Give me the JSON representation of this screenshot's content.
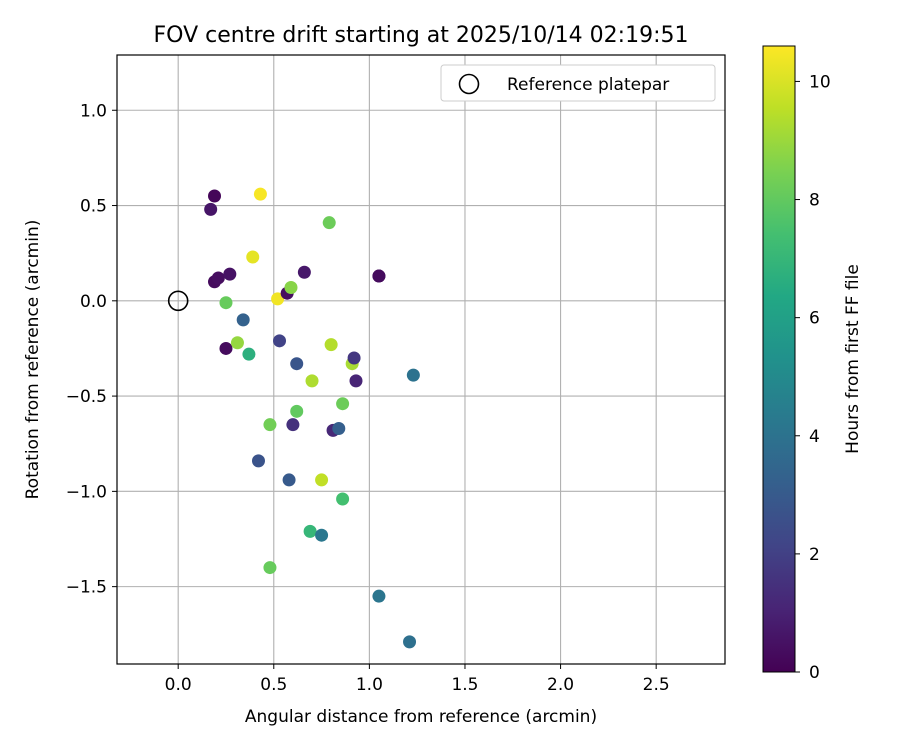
{
  "chart_data": {
    "type": "scatter",
    "title": "FOV centre drift starting at 2025/10/14 02:19:51",
    "xlabel": "Angular distance from reference (arcmin)",
    "ylabel": "Rotation from reference (arcmin)",
    "xlim": [
      -0.32,
      2.86
    ],
    "ylim": [
      -1.906,
      1.29
    ],
    "xticks": [
      0.0,
      0.5,
      1.0,
      1.5,
      2.0,
      2.5
    ],
    "xtick_labels": [
      "0.0",
      "0.5",
      "1.0",
      "1.5",
      "2.0",
      "2.5"
    ],
    "yticks": [
      1.0,
      0.5,
      0.0,
      -0.5,
      -1.0,
      -1.5
    ],
    "ytick_labels": [
      "1.0",
      "0.5",
      "0.0",
      "−0.5",
      "−1.0",
      "−1.5"
    ],
    "grid": true,
    "legend": {
      "position": "top-right",
      "entries": [
        {
          "label": "Reference platepar",
          "marker": "open-circle"
        }
      ]
    },
    "reference_point": {
      "x": 0.0,
      "y": 0.0
    },
    "colorbar": {
      "label": "Hours from first FF file",
      "colormap": "viridis",
      "range": [
        0,
        10.6
      ],
      "ticks": [
        0,
        2,
        4,
        6,
        8,
        10
      ],
      "tick_labels": [
        "0",
        "2",
        "4",
        "6",
        "8",
        "10"
      ]
    },
    "series": [
      {
        "name": "Drift points",
        "points": [
          {
            "x": 0.17,
            "y": 0.48,
            "hours": 0.6
          },
          {
            "x": 0.19,
            "y": 0.55,
            "hours": 0.15
          },
          {
            "x": 0.19,
            "y": 0.1,
            "hours": 0.3
          },
          {
            "x": 0.21,
            "y": 0.12,
            "hours": 0.4
          },
          {
            "x": 0.27,
            "y": 0.14,
            "hours": 0.5
          },
          {
            "x": 0.25,
            "y": -0.25,
            "hours": 0.3
          },
          {
            "x": 0.25,
            "y": -0.01,
            "hours": 8.1
          },
          {
            "x": 0.31,
            "y": -0.22,
            "hours": 8.9
          },
          {
            "x": 0.34,
            "y": -0.1,
            "hours": 3.3
          },
          {
            "x": 0.37,
            "y": -0.28,
            "hours": 6.7
          },
          {
            "x": 0.39,
            "y": 0.23,
            "hours": 10.2
          },
          {
            "x": 0.43,
            "y": 0.56,
            "hours": 10.5
          },
          {
            "x": 0.42,
            "y": -0.84,
            "hours": 2.7
          },
          {
            "x": 0.48,
            "y": -0.65,
            "hours": 8.3
          },
          {
            "x": 0.48,
            "y": -1.4,
            "hours": 8.1
          },
          {
            "x": 0.52,
            "y": 0.01,
            "hours": 10.4
          },
          {
            "x": 0.53,
            "y": -0.21,
            "hours": 2.1
          },
          {
            "x": 0.57,
            "y": 0.04,
            "hours": 0.4
          },
          {
            "x": 0.58,
            "y": -0.94,
            "hours": 3.0
          },
          {
            "x": 0.59,
            "y": 0.07,
            "hours": 8.7
          },
          {
            "x": 0.6,
            "y": -0.65,
            "hours": 1.5
          },
          {
            "x": 0.62,
            "y": -0.33,
            "hours": 2.8
          },
          {
            "x": 0.62,
            "y": -0.58,
            "hours": 8.0
          },
          {
            "x": 0.66,
            "y": 0.15,
            "hours": 0.7
          },
          {
            "x": 0.69,
            "y": -1.21,
            "hours": 7.0
          },
          {
            "x": 0.7,
            "y": -0.42,
            "hours": 9.3
          },
          {
            "x": 0.75,
            "y": -0.94,
            "hours": 9.6
          },
          {
            "x": 0.75,
            "y": -1.23,
            "hours": 4.2
          },
          {
            "x": 0.79,
            "y": 0.41,
            "hours": 8.2
          },
          {
            "x": 0.8,
            "y": -0.23,
            "hours": 9.4
          },
          {
            "x": 0.81,
            "y": -0.68,
            "hours": 1.2
          },
          {
            "x": 0.84,
            "y": -0.67,
            "hours": 3.2
          },
          {
            "x": 0.86,
            "y": -0.54,
            "hours": 8.2
          },
          {
            "x": 0.86,
            "y": -1.04,
            "hours": 7.4
          },
          {
            "x": 0.91,
            "y": -0.33,
            "hours": 9.2
          },
          {
            "x": 0.92,
            "y": -0.3,
            "hours": 1.7
          },
          {
            "x": 0.93,
            "y": -0.42,
            "hours": 1.1
          },
          {
            "x": 1.05,
            "y": 0.13,
            "hours": 0.2
          },
          {
            "x": 1.05,
            "y": 0.13,
            "hours": 0.3
          },
          {
            "x": 1.05,
            "y": -1.55,
            "hours": 4.1
          },
          {
            "x": 1.21,
            "y": -1.79,
            "hours": 3.9
          },
          {
            "x": 1.23,
            "y": -0.39,
            "hours": 4.0
          }
        ]
      }
    ]
  }
}
